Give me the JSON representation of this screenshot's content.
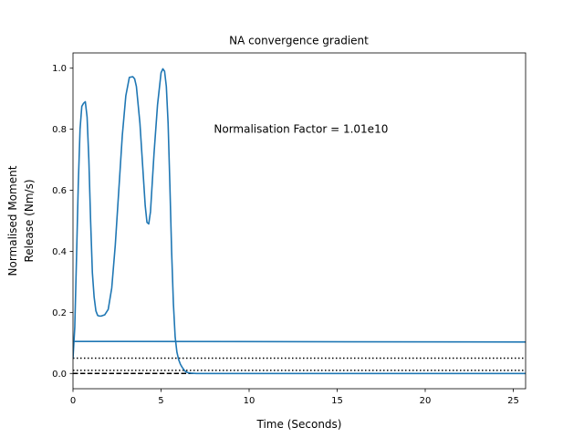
{
  "chart_data": {
    "type": "line",
    "title": "NA convergence gradient",
    "xlabel": "Time (Seconds)",
    "ylabel": [
      "Normalised Moment",
      "Release (Nm/s)"
    ],
    "xlim": [
      0,
      25.7
    ],
    "ylim": [
      -0.05,
      1.05
    ],
    "xticks": [
      0,
      5,
      10,
      15,
      20,
      25
    ],
    "yticks": [
      0.0,
      0.2,
      0.4,
      0.6,
      0.8,
      1.0
    ],
    "annotation": {
      "text": "Normalisation Factor = 1.01e10",
      "x": 8,
      "y": 0.8
    },
    "grid": false,
    "series": [
      {
        "color": "#1f77b4",
        "linestyle": "solid",
        "x": [
          0,
          0.1,
          0.2,
          0.3,
          0.4,
          0.5,
          0.6,
          0.7,
          0.8,
          0.9,
          1.0,
          1.1,
          1.2,
          1.3,
          1.4,
          1.5,
          1.6,
          1.8,
          2.0,
          2.2,
          2.4,
          2.6,
          2.8,
          3.0,
          3.2,
          3.4,
          3.5,
          3.6,
          3.8,
          4.0,
          4.1,
          4.2,
          4.3,
          4.4,
          4.6,
          4.8,
          5.0,
          5.1,
          5.2,
          5.3,
          5.4,
          5.5,
          5.6,
          5.7,
          5.8,
          5.9,
          6.0,
          6.1,
          6.2,
          6.3,
          6.4,
          6.5,
          6.7,
          7.0,
          8.0,
          10.0,
          15.0,
          20.0,
          25.7
        ],
        "y": [
          0.05,
          0.15,
          0.38,
          0.62,
          0.8,
          0.875,
          0.885,
          0.89,
          0.84,
          0.7,
          0.5,
          0.33,
          0.25,
          0.205,
          0.19,
          0.188,
          0.188,
          0.192,
          0.21,
          0.28,
          0.42,
          0.6,
          0.78,
          0.91,
          0.97,
          0.972,
          0.965,
          0.94,
          0.82,
          0.64,
          0.55,
          0.495,
          0.49,
          0.53,
          0.72,
          0.88,
          0.985,
          0.998,
          0.99,
          0.94,
          0.82,
          0.62,
          0.4,
          0.23,
          0.12,
          0.07,
          0.045,
          0.03,
          0.02,
          0.012,
          0.006,
          0.003,
          0.001,
          0.0,
          0.0,
          0.0,
          0.0,
          0.0,
          0.0
        ]
      },
      {
        "color": "#1f77b4",
        "linestyle": "solid",
        "x": [
          0,
          2.5,
          25.7
        ],
        "y": [
          0.105,
          0.105,
          0.103
        ]
      }
    ],
    "reference_lines": [
      {
        "y": 0.05,
        "linestyle": "dotted",
        "color": "#000000"
      },
      {
        "y": 0.01,
        "linestyle": "dotted",
        "color": "#000000"
      },
      {
        "y": 0.0,
        "linestyle": "dashed",
        "color": "#000000"
      }
    ]
  }
}
